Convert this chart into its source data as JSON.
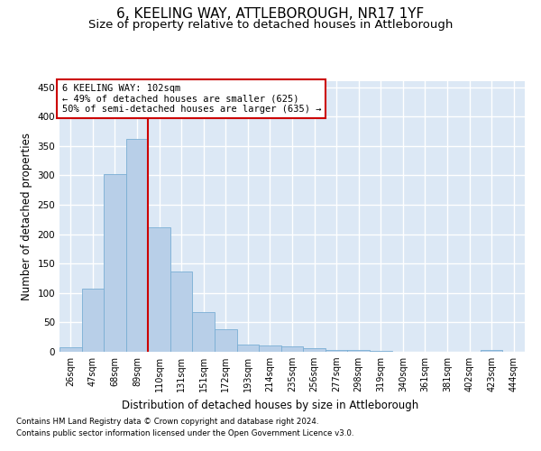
{
  "title": "6, KEELING WAY, ATTLEBOROUGH, NR17 1YF",
  "subtitle": "Size of property relative to detached houses in Attleborough",
  "xlabel": "Distribution of detached houses by size in Attleborough",
  "ylabel": "Number of detached properties",
  "footnote1": "Contains HM Land Registry data © Crown copyright and database right 2024.",
  "footnote2": "Contains public sector information licensed under the Open Government Licence v3.0.",
  "bar_labels": [
    "26sqm",
    "47sqm",
    "68sqm",
    "89sqm",
    "110sqm",
    "131sqm",
    "151sqm",
    "172sqm",
    "193sqm",
    "214sqm",
    "235sqm",
    "256sqm",
    "277sqm",
    "298sqm",
    "319sqm",
    "340sqm",
    "361sqm",
    "381sqm",
    "402sqm",
    "423sqm",
    "444sqm"
  ],
  "bar_values": [
    8,
    108,
    302,
    362,
    212,
    137,
    68,
    38,
    13,
    10,
    9,
    6,
    3,
    3,
    2,
    0,
    0,
    0,
    0,
    3,
    0
  ],
  "bar_color": "#b8cfe8",
  "bar_edge_color": "#7aaed4",
  "background_color": "#dce8f5",
  "grid_color": "#ffffff",
  "ylim": [
    0,
    460
  ],
  "yticks": [
    0,
    50,
    100,
    150,
    200,
    250,
    300,
    350,
    400,
    450
  ],
  "annotation_text": "6 KEELING WAY: 102sqm\n← 49% of detached houses are smaller (625)\n50% of semi-detached houses are larger (635) →",
  "vline_x_index": 3.5,
  "annotation_box_color": "#ffffff",
  "annotation_border_color": "#cc0000",
  "title_fontsize": 11,
  "subtitle_fontsize": 9.5,
  "axis_label_fontsize": 8.5,
  "tick_fontsize": 7,
  "annotation_fontsize": 7.5
}
